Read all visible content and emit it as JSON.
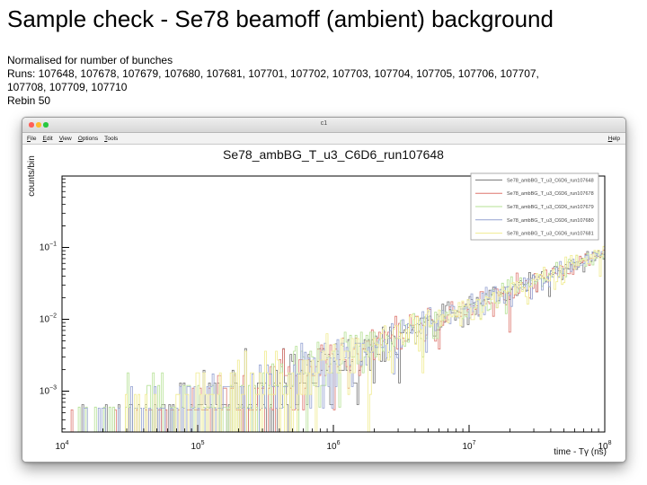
{
  "slide": {
    "title": "Sample check - Se78 beamoff (ambient) background",
    "lines": [
      "Normalised for number of bunches",
      "Runs: 107648, 107678, 107679, 107680, 107681, 107701, 107702, 107703, 107704, 107705, 107706, 107707,",
      "107708, 107709, 107710",
      "Rebin 50"
    ]
  },
  "window": {
    "title": "c1",
    "menu_items": [
      "File",
      "Edit",
      "View",
      "Options",
      "Tools"
    ],
    "help_label": "Help",
    "traffic_light_colors": {
      "close": "#ff5f57",
      "minimize": "#febc2e",
      "zoom": "#28c840"
    }
  },
  "chart_data": {
    "type": "line",
    "style": "five overlaid step histograms (noisy log-log spectra)",
    "title": "Se78_ambBG_T_u3_C6D6_run107648",
    "xlabel": "time - Tγ (ns)",
    "ylabel": "counts/bin",
    "xscale": "log",
    "yscale": "log",
    "xlim": [
      10000,
      100000000
    ],
    "ylim": [
      0.00027,
      1.0
    ],
    "xticks": [
      10000,
      100000,
      1000000,
      10000000,
      100000000
    ],
    "yticks": [
      0.1,
      0.01,
      0.001
    ],
    "grid": false,
    "legend_position": "top-right",
    "trend": {
      "x": [
        10000,
        100000,
        1000000,
        10000000,
        100000000
      ],
      "y": [
        8.5e-05,
        0.00048,
        0.0027,
        0.015,
        0.085
      ]
    },
    "series": [
      {
        "name": "Se78_ambBG_T_u3_C6D6_run107648",
        "color": "#757575",
        "count_quantum": 0.00065,
        "seed": 11
      },
      {
        "name": "Se78_ambBG_T_u3_C6D6_run107678",
        "color": "#dd776f",
        "count_quantum": 0.00055,
        "seed": 22
      },
      {
        "name": "Se78_ambBG_T_u3_C6D6_run107679",
        "color": "#b4e093",
        "count_quantum": 0.0006,
        "seed": 33
      },
      {
        "name": "Se78_ambBG_T_u3_C6D6_run107680",
        "color": "#94a2d1",
        "count_quantum": 0.00058,
        "seed": 44
      },
      {
        "name": "Se78_ambBG_T_u3_C6D6_run107681",
        "color": "#f0eb8f",
        "count_quantum": 0.0009,
        "seed": 55
      }
    ]
  }
}
